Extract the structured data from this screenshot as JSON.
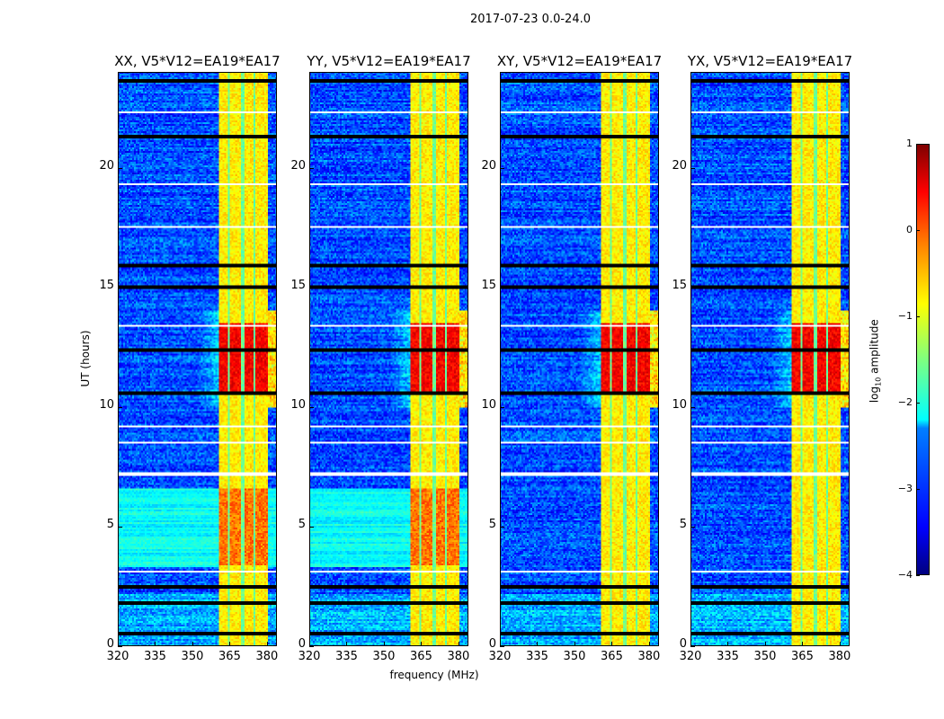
{
  "chart_data": {
    "type": "heatmap",
    "suptitle": "2017-07-23 0.0-24.0",
    "xlabel": "frequency (MHz)",
    "ylabel": "UT (hours)",
    "xlim": [
      320,
      384
    ],
    "ylim": [
      0,
      24
    ],
    "xticks": [
      320,
      335,
      350,
      365,
      380
    ],
    "yticks": [
      0,
      5,
      10,
      15,
      20
    ],
    "colorbar": {
      "label": "log10 amplitude",
      "label_main": "log",
      "label_sub": "10",
      "label_rest": " amplitude",
      "range": [
        -4,
        1
      ],
      "ticks": [
        1,
        0,
        -1,
        -2,
        -3,
        -4
      ],
      "tick_labels": [
        "1",
        "0",
        "−1",
        "−2",
        "−3",
        "−4"
      ],
      "colormap": "jet"
    },
    "panels": [
      {
        "title": "XX, V5*V12=EA19*EA17",
        "bright_green_low_hours": true
      },
      {
        "title": "YY, V5*V12=EA19*EA17",
        "bright_green_low_hours": true
      },
      {
        "title": "XY, V5*V12=EA19*EA17",
        "bright_green_low_hours": false
      },
      {
        "title": "YX, V5*V12=EA19*EA17",
        "bright_green_low_hours": false
      }
    ],
    "features": {
      "background_log_amp": -3.0,
      "rfi_band_mhz": [
        360.5,
        380
      ],
      "rfi_band_log_amp": -0.8,
      "band_gaps_mhz": [
        364.8,
        370.2,
        374.9
      ],
      "hot_hours": [
        10.5,
        13.5
      ],
      "hot_log_amp": 0.4,
      "flagged_black_hours": [
        0.5,
        1.8,
        2.5,
        10.6,
        12.4,
        15.0,
        15.9,
        21.3,
        23.6
      ],
      "flagged_white_hours": [
        3.1,
        7.2,
        8.5,
        9.2,
        13.4,
        17.5,
        19.3,
        22.3
      ]
    }
  }
}
